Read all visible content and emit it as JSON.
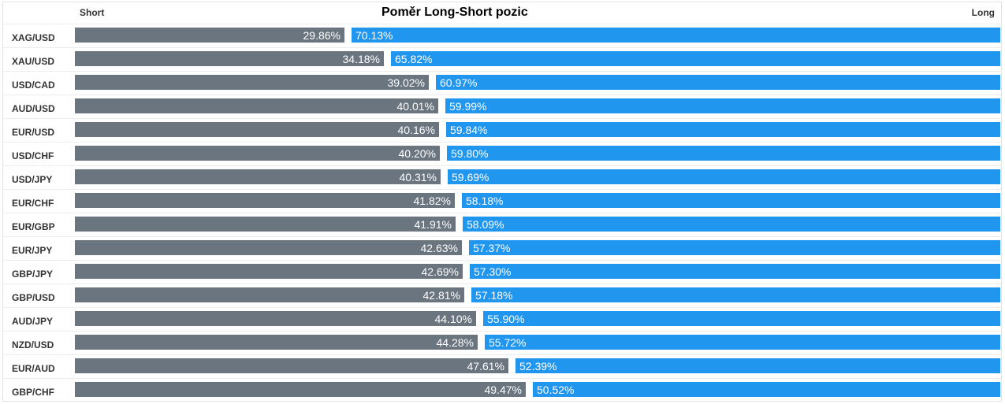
{
  "header": {
    "title": "Poměr Long-Short pozic",
    "short_label": "Short",
    "long_label": "Long"
  },
  "colors": {
    "short": "#6a7580",
    "long": "#2196ef"
  },
  "chart_data": {
    "type": "bar",
    "orientation": "horizontal-stacked-100",
    "title": "Poměr Long-Short pozic",
    "legend": [
      "Short",
      "Long"
    ],
    "categories": [
      "XAG/USD",
      "XAU/USD",
      "USD/CAD",
      "AUD/USD",
      "EUR/USD",
      "USD/CHF",
      "USD/JPY",
      "EUR/CHF",
      "EUR/GBP",
      "EUR/JPY",
      "GBP/JPY",
      "GBP/USD",
      "AUD/JPY",
      "NZD/USD",
      "EUR/AUD",
      "GBP/CHF"
    ],
    "series": [
      {
        "name": "Short",
        "values": [
          29.86,
          34.18,
          39.02,
          40.01,
          40.16,
          40.2,
          40.31,
          41.82,
          41.91,
          42.63,
          42.69,
          42.81,
          44.1,
          44.28,
          47.61,
          49.47
        ],
        "labels": [
          "29.86%",
          "34.18%",
          "39.02%",
          "40.01%",
          "40.16%",
          "40.20%",
          "40.31%",
          "41.82%",
          "41.91%",
          "42.63%",
          "42.69%",
          "42.81%",
          "44.10%",
          "44.28%",
          "47.61%",
          "49.47%"
        ]
      },
      {
        "name": "Long",
        "values": [
          70.13,
          65.82,
          60.97,
          59.99,
          59.84,
          59.8,
          59.69,
          58.18,
          58.09,
          57.37,
          57.3,
          57.18,
          55.9,
          55.72,
          52.39,
          50.52
        ],
        "labels": [
          "70.13%",
          "65.82%",
          "60.97%",
          "59.99%",
          "59.84%",
          "59.80%",
          "59.69%",
          "58.18%",
          "58.09%",
          "57.37%",
          "57.30%",
          "57.18%",
          "55.90%",
          "55.72%",
          "52.39%",
          "50.52%"
        ]
      }
    ],
    "xlim": [
      0,
      100
    ]
  }
}
